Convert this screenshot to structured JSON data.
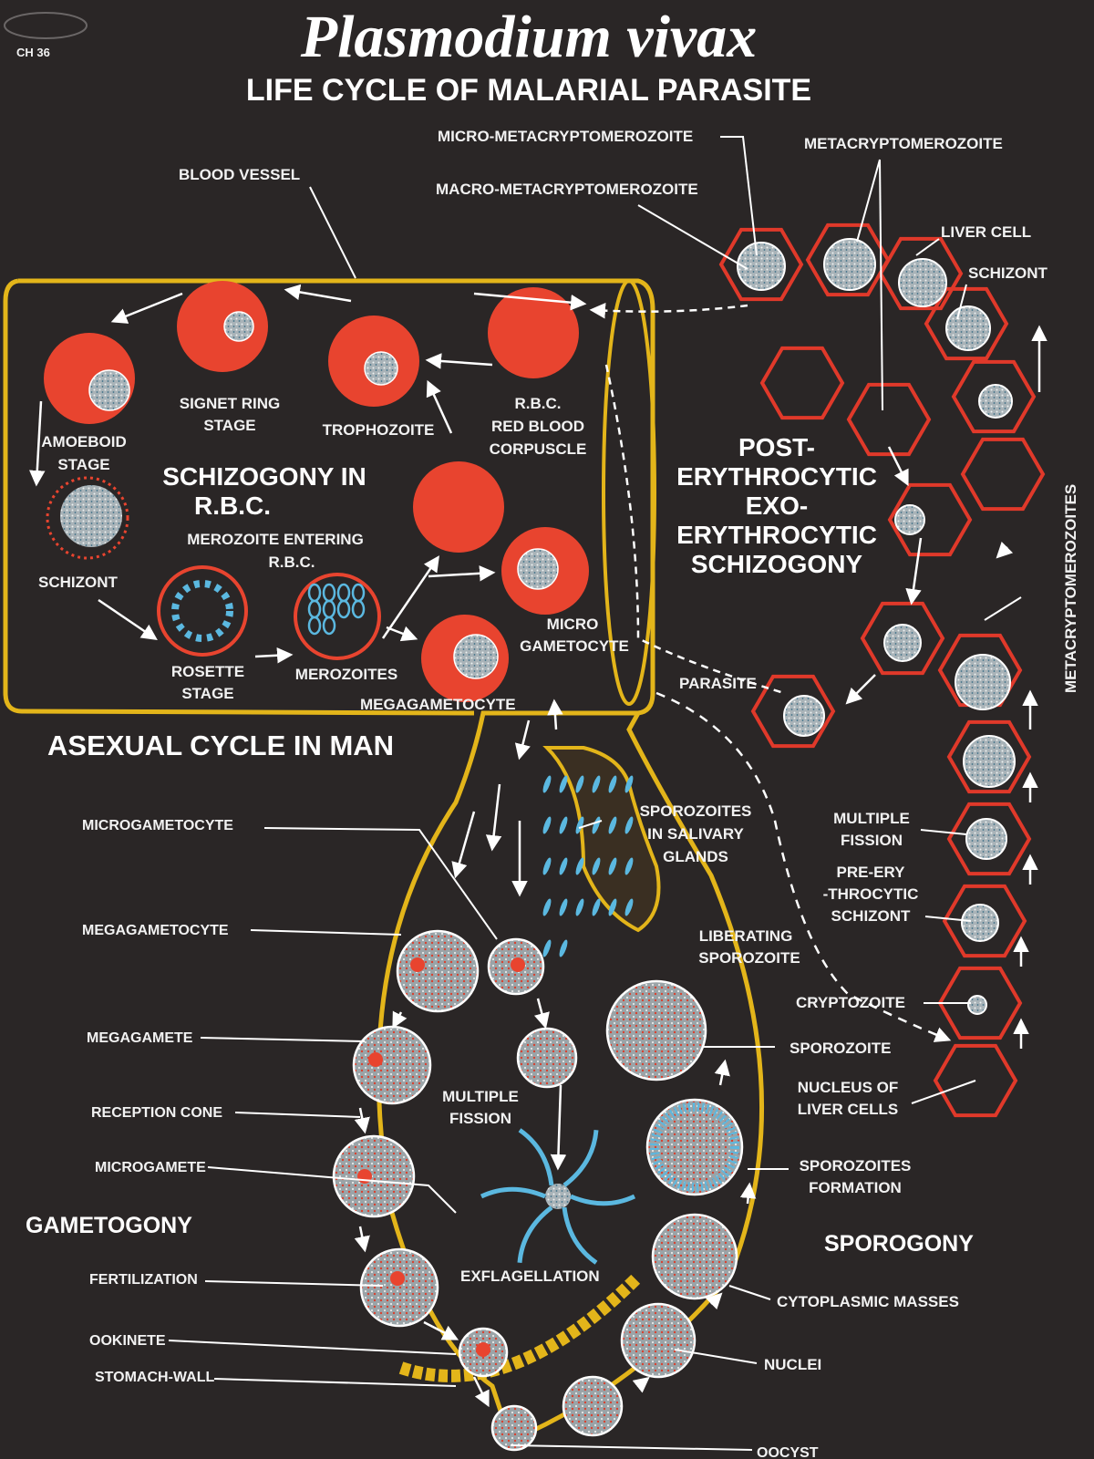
{
  "title": "Plasmodium vivax",
  "subtitle": "LIFE CYCLE OF MALARIAL PARASITE",
  "chart_code": "CH 36",
  "sections": {
    "asexual": "ASEXUAL CYCLE IN MAN",
    "schizogony": [
      "SCHIZOGONY IN",
      "R.B.C."
    ],
    "post_ery": [
      "POST-",
      "ERYTHROCYTIC",
      "EXO-",
      "ERYTHROCYTIC",
      "SCHIZOGONY"
    ],
    "gametogony": "GAMETOGONY",
    "sporogony": "SPOROGONY"
  },
  "labels": {
    "micro_meta": "MICRO-METACRYPTOMEROZOITE",
    "macro_meta": "MACRO-METACRYPTOMEROZOITE",
    "metacrypto": "METACRYPTOMEROZOITE",
    "blood_vessel": "BLOOD VESSEL",
    "liver_cell": "LIVER CELL",
    "schizont_liver": "SCHIZONT",
    "signet": [
      "SIGNET RING",
      "STAGE"
    ],
    "trophozoite": "TROPHOZOITE",
    "rbc": [
      "R.B.C.",
      "RED BLOOD",
      "CORPUSCLE"
    ],
    "amoeboid": [
      "AMOEBOID",
      "STAGE"
    ],
    "merozoite_entering": [
      "MEROZOITE ENTERING",
      "R.B.C."
    ],
    "schizont_rbc": "SCHIZONT",
    "rosette": [
      "ROSETTE",
      "STAGE"
    ],
    "merozoites": "MEROZOITES",
    "micro_gametocyte": [
      "MICRO",
      "GAMETOCYTE"
    ],
    "megagametocyte_top": "MEGAGAMETOCYTE",
    "parasite": "PARASITE",
    "metacrypto_vertical": "METACRYPTOMEROZOITES",
    "microgametocyte": "MICROGAMETOCYTE",
    "sporozoites_salivary": [
      "SPOROZOITES",
      "IN SALIVARY",
      "GLANDS"
    ],
    "multiple_fission_r": [
      "MULTIPLE",
      "FISSION"
    ],
    "pre_ery": [
      "PRE-ERY",
      "-THROCYTIC",
      "SCHIZONT"
    ],
    "megagametocyte": "MEGAGAMETOCYTE",
    "liberating": [
      "LIBERATING",
      "SPOROZOITE"
    ],
    "cryptozoite": "CRYPTOZOITE",
    "megagamete": "MEGAGAMETE",
    "sporozoite": "SPOROZOITE",
    "nucleus_liver": [
      "NUCLEUS OF",
      "LIVER CELLS"
    ],
    "multiple_fission_c": [
      "MULTIPLE",
      "FISSION"
    ],
    "reception_cone": "RECEPTION CONE",
    "microgamete": "MICROGAMETE",
    "sporozoites_formation": [
      "SPOROZOITES",
      "FORMATION"
    ],
    "fertilization": "FERTILIZATION",
    "exflagellation": "EXFLAGELLATION",
    "cytoplasmic": "CYTOPLASMIC MASSES",
    "ookinete": "OOKINETE",
    "nuclei": "NUCLEI",
    "stomach_wall": "STOMACH-WALL",
    "oocyst": "OOCYST"
  },
  "colors": {
    "background": "#2a2626",
    "rbc": "#e8442f",
    "outline": "#e3b51a",
    "liver": "#e0392a",
    "sporozoite": "#5bb8e0",
    "text": "#f2f2f2"
  }
}
